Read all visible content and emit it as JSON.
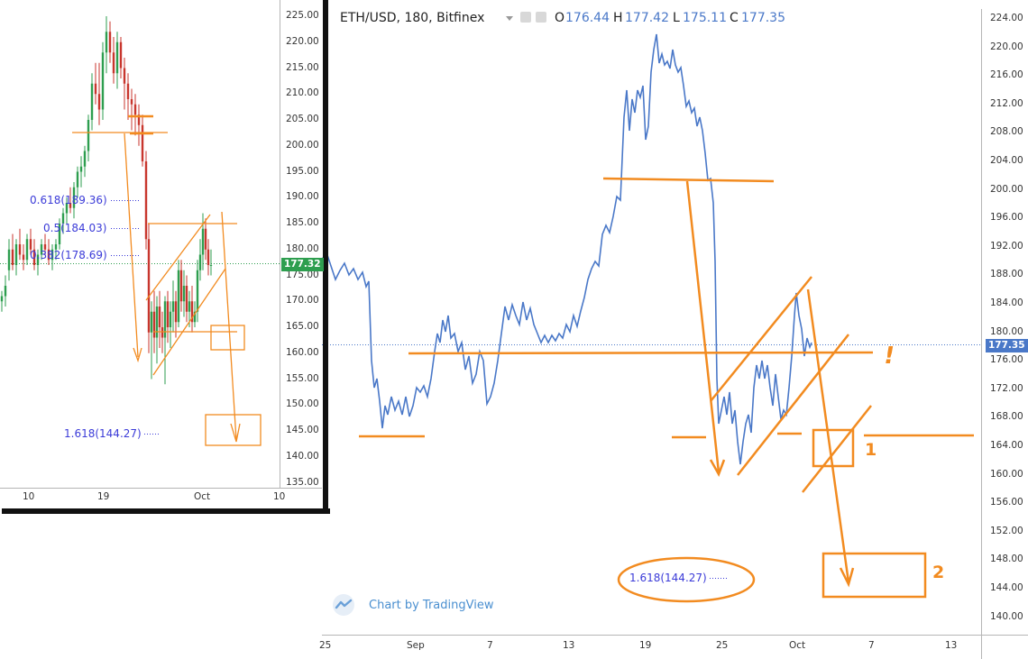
{
  "left_panel": {
    "y_ticks": [
      "225.00",
      "220.00",
      "215.00",
      "210.00",
      "205.00",
      "200.00",
      "195.00",
      "190.00",
      "185.00",
      "180.00",
      "175.00",
      "170.00",
      "165.00",
      "160.00",
      "155.00",
      "150.00",
      "145.00",
      "140.00",
      "135.00"
    ],
    "x_ticks": [
      "10",
      "19",
      "Oct",
      "10"
    ],
    "last_price": "177.32",
    "fib_labels": {
      "f0618": "0.618(189.36)",
      "f05": "0.5(184.03)",
      "f0382": "0.382(178.69)",
      "f1618": "1.618(144.27)"
    }
  },
  "header": {
    "symbol": "ETH/USD, 180, Bitfinex",
    "open_label": "O",
    "open": "176.44",
    "high_label": "H",
    "high": "177.42",
    "low_label": "L",
    "low": "175.11",
    "close_label": "C",
    "close": "177.35"
  },
  "main_panel": {
    "y_ticks": [
      "224.00",
      "220.00",
      "216.00",
      "212.00",
      "208.00",
      "204.00",
      "200.00",
      "196.00",
      "192.00",
      "188.00",
      "184.00",
      "180.00",
      "176.00",
      "172.00",
      "168.00",
      "164.00",
      "160.00",
      "156.00",
      "152.00",
      "148.00",
      "144.00",
      "140.00"
    ],
    "x_ticks": [
      "25",
      "Sep",
      "7",
      "13",
      "19",
      "25",
      "Oct",
      "7",
      "13"
    ],
    "last_price": "177.35",
    "fib_label": "1.618(144.27)",
    "annotation_1": "1",
    "annotation_2": "2",
    "annotation_exclaim": "!",
    "branding": "Chart by TradingView"
  },
  "colors": {
    "line": "#4a78c8",
    "annotation": "#f28b20",
    "left_tag": "#2e9e4f",
    "main_tag": "#4a78c8",
    "fib": "#3b3bd8"
  },
  "chart_data": [
    {
      "type": "line",
      "title": "ETH/USD, 180, Bitfinex",
      "x_ticks": [
        "25",
        "Sep",
        "7",
        "13",
        "19",
        "25",
        "Oct",
        "7",
        "13"
      ],
      "ylim": [
        138,
        225
      ],
      "grid": false,
      "last_value": 177.35,
      "series": [
        {
          "name": "ETH/USD",
          "x": [
            "Aug 23",
            "Aug 26",
            "Aug 29",
            "Aug 30",
            "Sep 1",
            "Sep 3",
            "Sep 5",
            "Sep 7",
            "Sep 9",
            "Sep 11",
            "Sep 13",
            "Sep 15",
            "Sep 17",
            "Sep 18",
            "Sep 19",
            "Sep 20",
            "Sep 21",
            "Sep 22",
            "Sep 23",
            "Sep 24",
            "Sep 25",
            "Sep 26",
            "Sep 27",
            "Sep 28",
            "Sep 29",
            "Sep 30",
            "Oct 1",
            "Oct 2"
          ],
          "values": [
            188,
            187,
            170,
            167,
            169,
            178,
            175,
            172,
            182,
            180,
            179,
            187,
            194,
            205,
            212,
            220,
            215,
            208,
            201,
            196,
            166,
            172,
            161,
            174,
            168,
            176,
            184,
            177
          ]
        }
      ],
      "horizontal_levels": [
        201.2,
        176.6,
        164.1
      ],
      "fib_levels": [
        {
          "label": "1.618(144.27)",
          "value": 144.27
        }
      ],
      "annotations": [
        "1",
        "2",
        "!"
      ]
    },
    {
      "type": "line",
      "x_ticks": [
        "10",
        "19",
        "Oct",
        "10"
      ],
      "ylim": [
        134,
        226
      ],
      "last_value": 177.32,
      "series": [
        {
          "x": [
            "Sep 7",
            "Sep 10",
            "Sep 13",
            "Sep 16",
            "Sep 18",
            "Sep 19",
            "Sep 20",
            "Sep 21",
            "Sep 22",
            "Sep 23",
            "Sep 24",
            "Sep 25",
            "Sep 26",
            "Sep 27",
            "Sep 28",
            "Sep 29",
            "Sep 30",
            "Oct 1",
            "Oct 2"
          ],
          "values": [
            170,
            182,
            178,
            182,
            205,
            215,
            222,
            212,
            206,
            200,
            190,
            164,
            168,
            160,
            170,
            166,
            180,
            186,
            177
          ]
        }
      ],
      "fib_levels": [
        {
          "label": "0.618(189.36)",
          "value": 189.36
        },
        {
          "label": "0.5(184.03)",
          "value": 184.03
        },
        {
          "label": "0.382(178.69)",
          "value": 178.69
        },
        {
          "label": "1.618(144.27)",
          "value": 144.27
        }
      ]
    }
  ]
}
